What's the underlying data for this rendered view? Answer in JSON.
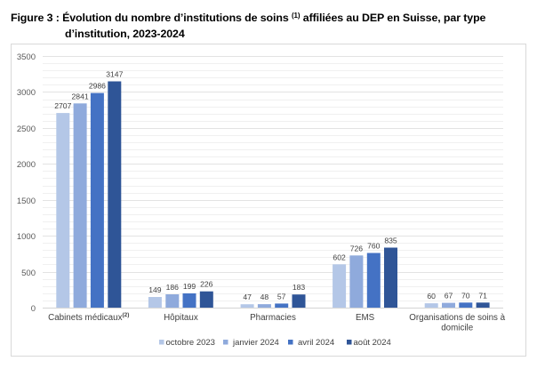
{
  "figure": {
    "title_part1": "Figure 3 : Évolution du nombre d’institutions de soins ",
    "title_sup": "(1)",
    "title_part2": " affiliées au DEP en Suisse, par type",
    "title_line2": "d’institution, 2023-2024"
  },
  "chart_data": {
    "type": "bar",
    "title": "Évolution du nombre d’institutions de soins (1) affiliées au DEP en Suisse, par type d’institution, 2023-2024",
    "xlabel": "",
    "ylabel": "",
    "ylim": [
      0,
      3500
    ],
    "yticks": [
      0,
      500,
      1000,
      1500,
      2000,
      2500,
      3000,
      3500
    ],
    "grid": true,
    "minor_grid_step": 100,
    "legend_position": "bottom",
    "categories": [
      {
        "label": "Cabinets médicaux",
        "sup": "(2)"
      },
      {
        "label": "Hôpitaux",
        "sup": ""
      },
      {
        "label": "Pharmacies",
        "sup": ""
      },
      {
        "label": "EMS",
        "sup": ""
      },
      {
        "label": "Organisations de soins à domicile",
        "sup": "",
        "lines": [
          "Organisations de soins à",
          "domicile"
        ]
      }
    ],
    "series": [
      {
        "name": "octobre 2023",
        "color": "#b4c7e7",
        "values": [
          2707,
          149,
          47,
          602,
          60
        ]
      },
      {
        "name": "janvier 2024",
        "color": "#8faadc",
        "values": [
          2841,
          186,
          48,
          726,
          67
        ]
      },
      {
        "name": "avril 2024",
        "color": "#4472c4",
        "values": [
          2986,
          199,
          57,
          760,
          70
        ]
      },
      {
        "name": "août 2024",
        "color": "#2f5597",
        "values": [
          3147,
          226,
          183,
          835,
          71
        ]
      }
    ]
  }
}
